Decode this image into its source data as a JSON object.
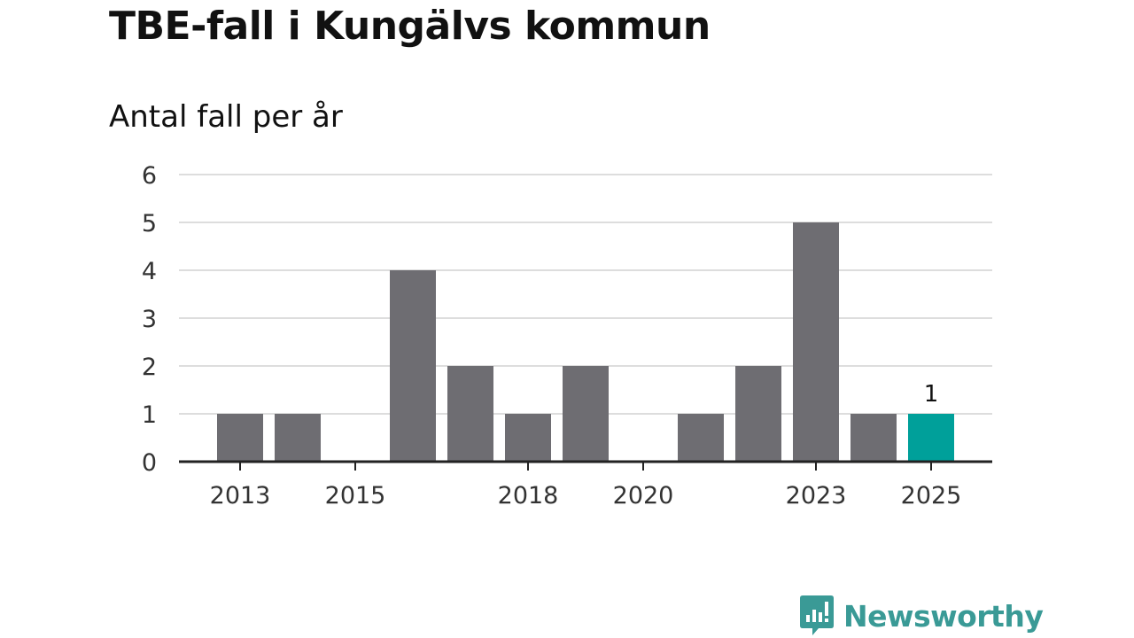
{
  "title": "TBE-fall i Kungälvs kommun",
  "subtitle": "Antal fall per år",
  "brand": {
    "name": "Newsworthy",
    "logo_icon": "newsworthy-chart-bubble-icon",
    "color": "#3a9a96"
  },
  "colors": {
    "bar": "#6e6d72",
    "highlight": "#00a09a",
    "grid": "#dddddd",
    "axis": "#222222",
    "text": "#333333"
  },
  "chart_data": {
    "type": "bar",
    "title": "TBE-fall i Kungälvs kommun",
    "subtitle": "Antal fall per år",
    "xlabel": "",
    "ylabel": "",
    "categories": [
      "2013",
      "2014",
      "2015",
      "2016",
      "2017",
      "2018",
      "2019",
      "2020",
      "2021",
      "2022",
      "2023",
      "2024",
      "2025"
    ],
    "values": [
      1,
      1,
      0,
      4,
      2,
      1,
      2,
      0,
      1,
      2,
      5,
      1,
      1
    ],
    "x_tick_labels": [
      "2013",
      "2015",
      "2018",
      "2020",
      "2023",
      "2025"
    ],
    "y_ticks": [
      0,
      1,
      2,
      3,
      4,
      5,
      6
    ],
    "ylim": [
      0,
      6
    ],
    "grid": true,
    "highlight_category": "2025",
    "data_labels": [
      {
        "category": "2025",
        "text": "1"
      }
    ]
  }
}
